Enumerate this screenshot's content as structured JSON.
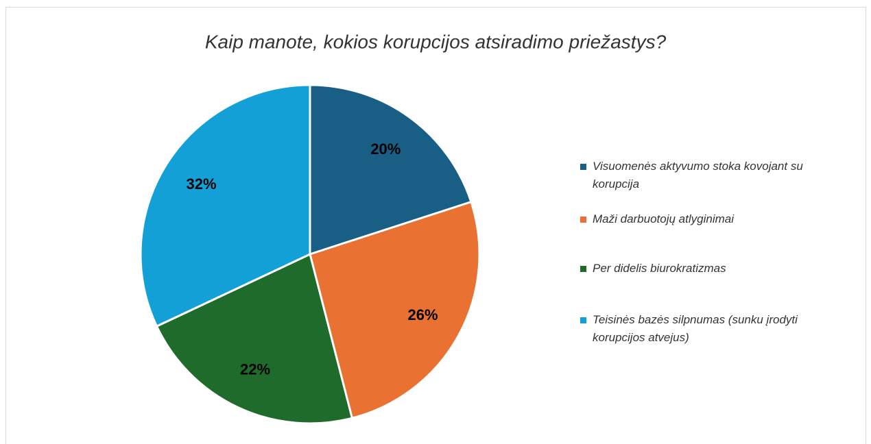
{
  "chart_data": {
    "type": "pie",
    "title": "Kaip manote, kokios korupcijos atsiradimo priežastys?",
    "categories": [
      "Visuomenės aktyvumo stoka kovojant su korupcija",
      "Maži darbuotojų atlyginimai",
      "Per didelis biurokratizmas",
      "Teisinės bazės silpnumas (sunku įrodyti korupcijos atvejus)"
    ],
    "values": [
      20,
      26,
      22,
      32
    ],
    "value_labels": [
      "20%",
      "26%",
      "22%",
      "32%"
    ],
    "colors": [
      "#195f85",
      "#e97132",
      "#1e6b2b",
      "#12a0d7"
    ],
    "legend": "right"
  }
}
